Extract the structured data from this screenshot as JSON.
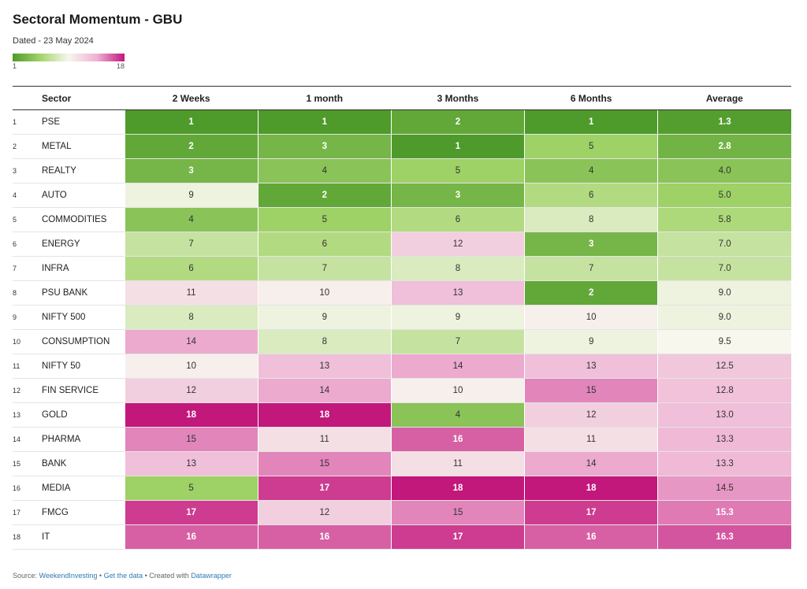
{
  "title": "Sectoral Momentum - GBU",
  "subtitle": "Dated - 23 May 2024",
  "legend": {
    "min": "1",
    "max": "18"
  },
  "colors": {
    "low": "#4e9a2a",
    "mid": "#f7f7ee",
    "high": "#c2177b"
  },
  "chart_data": {
    "type": "table",
    "title": "Sectoral Momentum - GBU",
    "subtitle": "Dated - 23 May 2024",
    "columns": [
      "Sector",
      "2 Weeks",
      "1 month",
      "3 Months",
      "6 Months",
      "Average"
    ],
    "rows": [
      {
        "rank": "1",
        "sector": "PSE",
        "values": [
          "1",
          "1",
          "2",
          "1",
          "1.3"
        ]
      },
      {
        "rank": "2",
        "sector": "METAL",
        "values": [
          "2",
          "3",
          "1",
          "5",
          "2.8"
        ]
      },
      {
        "rank": "3",
        "sector": "REALTY",
        "values": [
          "3",
          "4",
          "5",
          "4",
          "4.0"
        ]
      },
      {
        "rank": "4",
        "sector": "AUTO",
        "values": [
          "9",
          "2",
          "3",
          "6",
          "5.0"
        ]
      },
      {
        "rank": "5",
        "sector": "COMMODITIES",
        "values": [
          "4",
          "5",
          "6",
          "8",
          "5.8"
        ]
      },
      {
        "rank": "6",
        "sector": "ENERGY",
        "values": [
          "7",
          "6",
          "12",
          "3",
          "7.0"
        ]
      },
      {
        "rank": "7",
        "sector": "INFRA",
        "values": [
          "6",
          "7",
          "8",
          "7",
          "7.0"
        ]
      },
      {
        "rank": "8",
        "sector": "PSU BANK",
        "values": [
          "11",
          "10",
          "13",
          "2",
          "9.0"
        ]
      },
      {
        "rank": "9",
        "sector": "NIFTY 500",
        "values": [
          "8",
          "9",
          "9",
          "10",
          "9.0"
        ]
      },
      {
        "rank": "10",
        "sector": "CONSUMPTION",
        "values": [
          "14",
          "8",
          "7",
          "9",
          "9.5"
        ]
      },
      {
        "rank": "11",
        "sector": "NIFTY 50",
        "values": [
          "10",
          "13",
          "14",
          "13",
          "12.5"
        ]
      },
      {
        "rank": "12",
        "sector": "FIN SERVICE",
        "values": [
          "12",
          "14",
          "10",
          "15",
          "12.8"
        ]
      },
      {
        "rank": "13",
        "sector": "GOLD",
        "values": [
          "18",
          "18",
          "4",
          "12",
          "13.0"
        ]
      },
      {
        "rank": "14",
        "sector": "PHARMA",
        "values": [
          "15",
          "11",
          "16",
          "11",
          "13.3"
        ]
      },
      {
        "rank": "15",
        "sector": "BANK",
        "values": [
          "13",
          "15",
          "11",
          "14",
          "13.3"
        ]
      },
      {
        "rank": "16",
        "sector": "MEDIA",
        "values": [
          "5",
          "17",
          "18",
          "18",
          "14.5"
        ]
      },
      {
        "rank": "17",
        "sector": "FMCG",
        "values": [
          "17",
          "12",
          "15",
          "17",
          "15.3"
        ]
      },
      {
        "rank": "18",
        "sector": "IT",
        "values": [
          "16",
          "16",
          "17",
          "16",
          "16.3"
        ]
      }
    ],
    "scale": {
      "min": 1,
      "max": 18
    }
  },
  "source": {
    "prefix": "Source: ",
    "source_name": "WeekendInvesting",
    "sep1": " • ",
    "get_data": "Get the data",
    "sep2": " • Created with ",
    "tool": "Datawrapper"
  }
}
